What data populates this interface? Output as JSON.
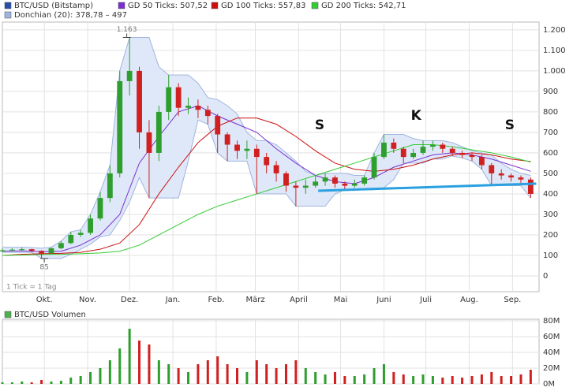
{
  "chart_data": {
    "type": "candlestick",
    "price": {
      "name": "BTC/USD (Bitstamp)",
      "color": "#2a4fa8",
      "up_color": "#2e9e2e",
      "down_color": "#d02020",
      "x": [
        0,
        7,
        14,
        21,
        28,
        35,
        42,
        49,
        56,
        63,
        70,
        77,
        84,
        91,
        98,
        105,
        112,
        119,
        126,
        133,
        140,
        147,
        154,
        161,
        168,
        175,
        182,
        189,
        196,
        203,
        210,
        217,
        224,
        231,
        238,
        245,
        252,
        259,
        266,
        273,
        280,
        287,
        294,
        301,
        308,
        315,
        322,
        329,
        336,
        343,
        350,
        357,
        364,
        371,
        378
      ],
      "open": [
        120,
        125,
        128,
        130,
        122,
        110,
        135,
        160,
        200,
        210,
        280,
        380,
        500,
        950,
        1000,
        700,
        600,
        800,
        920,
        820,
        830,
        810,
        780,
        690,
        640,
        610,
        620,
        580,
        540,
        500,
        440,
        430,
        440,
        460,
        480,
        450,
        440,
        450,
        480,
        580,
        650,
        620,
        580,
        600,
        630,
        640,
        620,
        600,
        590,
        580,
        540,
        500,
        490,
        480,
        470
      ],
      "high": [
        135,
        135,
        138,
        132,
        125,
        140,
        170,
        215,
        225,
        300,
        410,
        540,
        1000,
        1163,
        1020,
        760,
        830,
        980,
        940,
        870,
        860,
        830,
        790,
        700,
        660,
        660,
        640,
        600,
        560,
        510,
        460,
        470,
        490,
        500,
        490,
        460,
        470,
        490,
        600,
        690,
        670,
        630,
        620,
        660,
        660,
        650,
        630,
        610,
        600,
        590,
        550,
        520,
        500,
        490,
        480
      ],
      "low": [
        115,
        120,
        122,
        115,
        85,
        105,
        130,
        155,
        190,
        200,
        270,
        360,
        480,
        880,
        620,
        380,
        560,
        760,
        780,
        790,
        770,
        740,
        600,
        560,
        570,
        570,
        400,
        500,
        460,
        410,
        340,
        400,
        430,
        440,
        430,
        420,
        430,
        440,
        470,
        570,
        600,
        550,
        570,
        590,
        610,
        600,
        585,
        575,
        560,
        520,
        440,
        470,
        460,
        450,
        380
      ],
      "close": [
        125,
        128,
        130,
        122,
        110,
        135,
        160,
        200,
        210,
        280,
        380,
        500,
        950,
        1000,
        700,
        600,
        800,
        920,
        820,
        830,
        810,
        780,
        690,
        640,
        610,
        620,
        580,
        540,
        500,
        440,
        430,
        440,
        460,
        480,
        450,
        440,
        450,
        480,
        580,
        650,
        620,
        580,
        600,
        630,
        640,
        620,
        600,
        590,
        580,
        540,
        500,
        490,
        480,
        470,
        400
      ]
    },
    "ma_x": [
      0,
      14,
      28,
      42,
      56,
      70,
      84,
      98,
      112,
      126,
      140,
      154,
      168,
      182,
      196,
      210,
      224,
      238,
      252,
      266,
      280,
      294,
      308,
      322,
      336,
      350,
      364,
      378
    ],
    "series": [
      {
        "name": "GD 50 Ticks: 507,52",
        "color": "#7a2fd0",
        "values": [
          120,
          122,
          118,
          120,
          150,
          200,
          300,
          550,
          680,
          800,
          830,
          780,
          740,
          700,
          620,
          550,
          490,
          460,
          450,
          480,
          530,
          560,
          590,
          600,
          590,
          570,
          540,
          510
        ]
      },
      {
        "name": "GD 100 Ticks: 557,83",
        "color": "#cc1010",
        "values": [
          100,
          105,
          108,
          110,
          115,
          130,
          160,
          250,
          400,
          530,
          650,
          730,
          770,
          770,
          740,
          680,
          610,
          550,
          520,
          510,
          520,
          540,
          570,
          590,
          600,
          590,
          570,
          558
        ]
      },
      {
        "name": "GD 200 Ticks: 542,71",
        "color": "#33cc33",
        "values": [
          100,
          102,
          104,
          105,
          108,
          112,
          120,
          150,
          200,
          250,
          300,
          340,
          370,
          400,
          430,
          460,
          490,
          520,
          550,
          580,
          610,
          640,
          640,
          630,
          615,
          600,
          580,
          555
        ]
      }
    ],
    "donchian": {
      "name": "Donchian (20): 378,78 – 497",
      "color": "#9fb4de",
      "fill": "#dfe8f8",
      "upper": [
        140,
        140,
        140,
        138,
        135,
        140,
        170,
        215,
        225,
        300,
        410,
        540,
        1000,
        1163,
        1163,
        1163,
        1020,
        980,
        980,
        980,
        940,
        870,
        860,
        830,
        790,
        700,
        660,
        660,
        640,
        600,
        560,
        510,
        490,
        500,
        500,
        500,
        490,
        490,
        600,
        690,
        690,
        690,
        670,
        660,
        660,
        660,
        650,
        630,
        610,
        600,
        590,
        550,
        520,
        500,
        490
      ],
      "lower": [
        115,
        115,
        115,
        115,
        85,
        85,
        85,
        105,
        130,
        155,
        190,
        200,
        270,
        360,
        480,
        380,
        380,
        380,
        380,
        560,
        760,
        740,
        600,
        560,
        560,
        560,
        400,
        400,
        400,
        400,
        340,
        340,
        340,
        340,
        400,
        420,
        420,
        420,
        420,
        430,
        470,
        550,
        550,
        550,
        570,
        570,
        585,
        575,
        560,
        520,
        440,
        440,
        440,
        440,
        380
      ]
    },
    "trendline": {
      "color": "#2aa0e0",
      "x": [
        226,
        382
      ],
      "values": [
        415,
        450
      ]
    },
    "annotations": [
      {
        "text": "S",
        "x": 227,
        "y": 735
      },
      {
        "text": "K",
        "x": 296,
        "y": 780
      },
      {
        "text": "S",
        "x": 363,
        "y": 735
      }
    ],
    "extremes": [
      {
        "x": 89,
        "value": 1163,
        "label": "1.163"
      },
      {
        "x": 30,
        "value": 85
      }
    ],
    "xlim": [
      0,
      384
    ],
    "xticks": [
      {
        "value": 30,
        "label": "Okt."
      },
      {
        "value": 61,
        "label": "Nov."
      },
      {
        "value": 91,
        "label": "Dez."
      },
      {
        "value": 122,
        "label": "Jan."
      },
      {
        "value": 153,
        "label": "Feb."
      },
      {
        "value": 181,
        "label": "März"
      },
      {
        "value": 212,
        "label": "April"
      },
      {
        "value": 242,
        "label": "Mai"
      },
      {
        "value": 273,
        "label": "Juni"
      },
      {
        "value": 303,
        "label": "Juli"
      },
      {
        "value": 334,
        "label": "Aug."
      },
      {
        "value": 365,
        "label": "Sep."
      }
    ],
    "ylim": [
      -77,
      1238
    ],
    "yticks": [
      0,
      100,
      200,
      300,
      400,
      500,
      600,
      700,
      800,
      900,
      {
        "value": 1000,
        "label": "1.000"
      },
      {
        "value": 1100,
        "label": "1.100"
      },
      {
        "value": 1200,
        "label": "1.200"
      }
    ],
    "grid": true,
    "note": "1 Tick = 1 Tag",
    "volume": {
      "title": "BTC/USD Volumen",
      "color": "#4caf50",
      "values": [
        2000000,
        2000000,
        3000000,
        2000000,
        5000000,
        3000000,
        4000000,
        8000000,
        10000000,
        15000000,
        20000000,
        30000000,
        45000000,
        70000000,
        55000000,
        50000000,
        30000000,
        25000000,
        20000000,
        15000000,
        25000000,
        30000000,
        35000000,
        25000000,
        20000000,
        15000000,
        30000000,
        25000000,
        20000000,
        25000000,
        30000000,
        20000000,
        15000000,
        12000000,
        15000000,
        10000000,
        10000000,
        12000000,
        20000000,
        25000000,
        15000000,
        12000000,
        10000000,
        12000000,
        10000000,
        8000000,
        10000000,
        8000000,
        10000000,
        12000000,
        15000000,
        10000000,
        10000000,
        12000000,
        18000000
      ],
      "ylim": [
        0,
        82000000
      ],
      "yticks": [
        {
          "value": 0,
          "label": "0M"
        },
        {
          "value": 20000000,
          "label": "20M"
        },
        {
          "value": 40000000,
          "label": "40M"
        },
        {
          "value": 60000000,
          "label": "60M"
        },
        {
          "value": 80000000,
          "label": "80M"
        }
      ]
    }
  }
}
